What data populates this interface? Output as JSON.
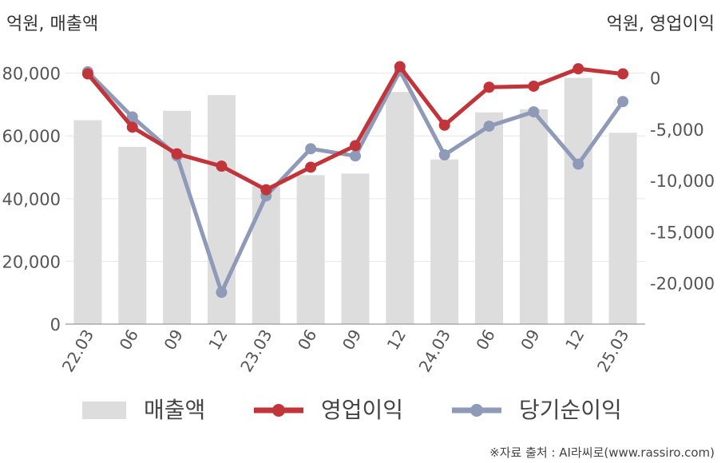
{
  "chart_data": {
    "type": "bar+line",
    "title": "",
    "y_left_label": "억원, 매출액",
    "y_right_label": "억원, 영업이익",
    "categories": [
      "22.03",
      "06",
      "09",
      "12",
      "23.03",
      "06",
      "09",
      "12",
      "24.03",
      "06",
      "09",
      "12",
      "25.03"
    ],
    "ylim_left": [
      0,
      85000
    ],
    "ylim_right": [
      -24000,
      2000
    ],
    "y_left_ticks": [
      0,
      20000,
      40000,
      60000,
      80000
    ],
    "y_left_tick_labels": [
      "0",
      "20,000",
      "40,000",
      "60,000",
      "80,000"
    ],
    "y_right_ticks": [
      0,
      -5000,
      -10000,
      -15000,
      -20000
    ],
    "y_right_tick_labels": [
      "0",
      "-5,000",
      "-10,000",
      "-15,000",
      "-20,000"
    ],
    "series": [
      {
        "name": "매출액",
        "type": "bar",
        "axis": "left",
        "color": "#dddddd",
        "values": [
          65000,
          56500,
          68000,
          73000,
          44000,
          47500,
          48000,
          74000,
          52500,
          67500,
          68500,
          78500,
          61000
        ]
      },
      {
        "name": "영업이익",
        "type": "line",
        "axis": "right",
        "color": "#c0343a",
        "values": [
          400,
          -4800,
          -7400,
          -8600,
          -10900,
          -8700,
          -6600,
          1100,
          -4600,
          -900,
          -800,
          900,
          400
        ]
      },
      {
        "name": "당기순이익",
        "type": "line",
        "axis": "right",
        "color": "#8e9ab7",
        "values": [
          600,
          -3800,
          -7600,
          -20900,
          -11500,
          -6900,
          -7600,
          700,
          -7500,
          -4700,
          -3300,
          -8400,
          -2300
        ]
      }
    ],
    "grid": true,
    "legend_position": "bottom"
  },
  "source_text": "※자료 출처 : AI라씨로(www.rassiro.com)"
}
